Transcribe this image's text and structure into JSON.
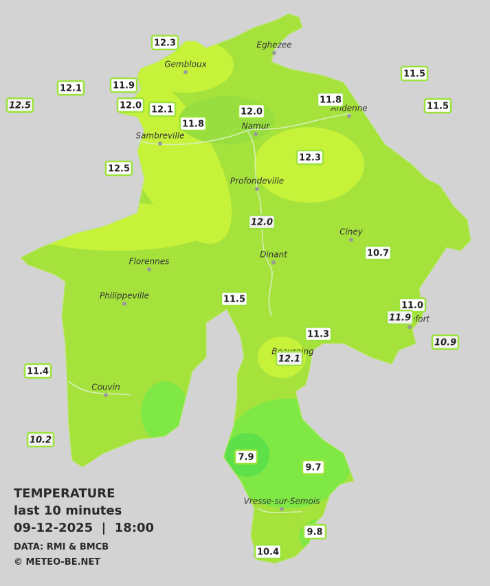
{
  "legend": {
    "title": "TEMPERATURE",
    "period": "last 10 minutes",
    "datetime": "09-12-2025  |  18:00",
    "source": "DATA: RMI & BMCB",
    "copyright": "© METEO-BE.NET"
  },
  "cities": [
    "Eghezee",
    "Gembloux",
    "Andenne",
    "Namur",
    "Sambreville",
    "Profondeville",
    "Ciney",
    "Dinant",
    "Florennes",
    "Philippeville",
    "Rochefort",
    "Beauraing",
    "Couvin",
    "Vresse-sur-Semois"
  ],
  "stations": [
    {
      "label": "12.3",
      "italic": false
    },
    {
      "label": "12.1",
      "italic": false
    },
    {
      "label": "11.9",
      "italic": false
    },
    {
      "label": "12.5",
      "italic": true
    },
    {
      "label": "12.0",
      "italic": false
    },
    {
      "label": "12.1",
      "italic": false
    },
    {
      "label": "11.8",
      "italic": false
    },
    {
      "label": "12.0",
      "italic": false
    },
    {
      "label": "11.8",
      "italic": false
    },
    {
      "label": "11.5",
      "italic": false
    },
    {
      "label": "11.5",
      "italic": false
    },
    {
      "label": "12.5",
      "italic": false
    },
    {
      "label": "12.3",
      "italic": false
    },
    {
      "label": "12.0",
      "italic": true
    },
    {
      "label": "10.7",
      "italic": false
    },
    {
      "label": "11.5",
      "italic": false
    },
    {
      "label": "11.0",
      "italic": false
    },
    {
      "label": "11.9",
      "italic": true
    },
    {
      "label": "11.3",
      "italic": false
    },
    {
      "label": "10.9",
      "italic": true
    },
    {
      "label": "12.1",
      "italic": true
    },
    {
      "label": "11.4",
      "italic": false
    },
    {
      "label": "10.2",
      "italic": true
    },
    {
      "label": "7.9",
      "italic": false
    },
    {
      "label": "9.7",
      "italic": false
    },
    {
      "label": "9.8",
      "italic": false
    },
    {
      "label": "10.4",
      "italic": false
    }
  ]
}
